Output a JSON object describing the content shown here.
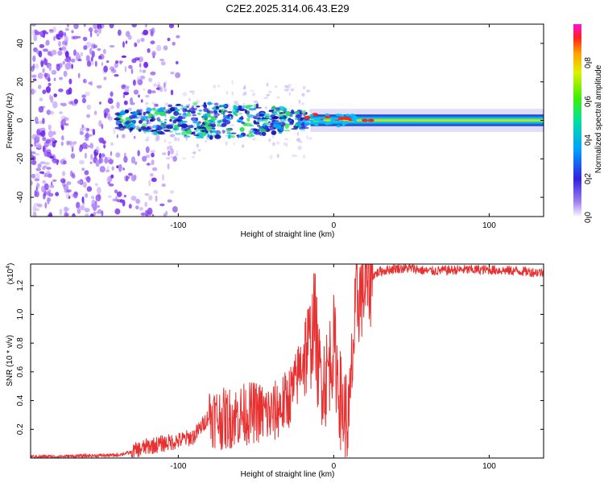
{
  "title": "C2E2.2025.314.06.43.E29",
  "colors": {
    "snr_line": "#e83030",
    "spec_scatter": "#8a3cf0",
    "spec_band": "#1a1aa0",
    "axis": "#000000"
  },
  "chart_data": [
    {
      "type": "heatmap",
      "name": "spectrogram",
      "title": "C2E2.2025.314.06.43.E29",
      "xlabel": "Height of straight line (km)",
      "ylabel": "Frequency (Hz)",
      "xlim": [
        -195,
        135
      ],
      "ylim": [
        -50,
        50
      ],
      "xticks": [
        -100,
        0,
        100
      ],
      "xtick_labels": [
        "-100",
        "0",
        "100"
      ],
      "yticks": [
        -40,
        -20,
        0,
        20,
        40
      ],
      "ytick_labels": [
        "-40",
        "-20",
        "0",
        "20",
        "40"
      ],
      "colorbar": {
        "label": "Normalized spectral amplitude",
        "range": [
          0,
          1
        ],
        "ticks": [
          0,
          0.2,
          0.4,
          0.6,
          0.8
        ],
        "tick_labels": [
          "0.0",
          "0.2",
          "0.4",
          "0.6",
          "0.8"
        ]
      },
      "features": {
        "noise_region_x": [
          -195,
          -120
        ],
        "scatter_region_x": [
          -140,
          -15
        ],
        "signal_band_x": [
          -15,
          135
        ],
        "signal_center_hz": 0
      }
    },
    {
      "type": "line",
      "name": "snr",
      "xlabel": "Height of straight line (km)",
      "ylabel": "SNR (10 * v/v)",
      "y_scale_label": "(x10",
      "y_scale_exp": "4",
      "xlim": [
        -195,
        135
      ],
      "ylim": [
        0,
        1.35
      ],
      "xticks": [
        -100,
        0,
        100
      ],
      "xtick_labels": [
        "-100",
        "0",
        "100"
      ],
      "yticks": [
        0.2,
        0.4,
        0.6,
        0.8,
        1.0,
        1.2
      ],
      "ytick_labels": [
        "0.2",
        "0.4",
        "0.6",
        "0.8",
        "1.0",
        "1.2"
      ],
      "series": [
        {
          "name": "SNR",
          "x": [
            -195,
            -180,
            -160,
            -140,
            -130,
            -120,
            -110,
            -100,
            -90,
            -85,
            -80,
            -75,
            -70,
            -60,
            -50,
            -40,
            -30,
            -25,
            -20,
            -15,
            -12,
            -10,
            -5,
            0,
            5,
            10,
            12,
            15,
            20,
            25,
            30,
            40,
            50,
            60,
            80,
            100,
            120,
            135
          ],
          "y": [
            0.01,
            0.01,
            0.015,
            0.02,
            0.04,
            0.08,
            0.1,
            0.12,
            0.15,
            0.22,
            0.3,
            0.28,
            0.27,
            0.3,
            0.32,
            0.3,
            0.4,
            0.5,
            0.7,
            0.8,
            1.0,
            0.6,
            0.55,
            0.8,
            0.35,
            0.25,
            0.7,
            1.1,
            1.2,
            1.27,
            1.3,
            1.32,
            1.32,
            1.3,
            1.31,
            1.31,
            1.3,
            1.29
          ]
        }
      ]
    }
  ]
}
